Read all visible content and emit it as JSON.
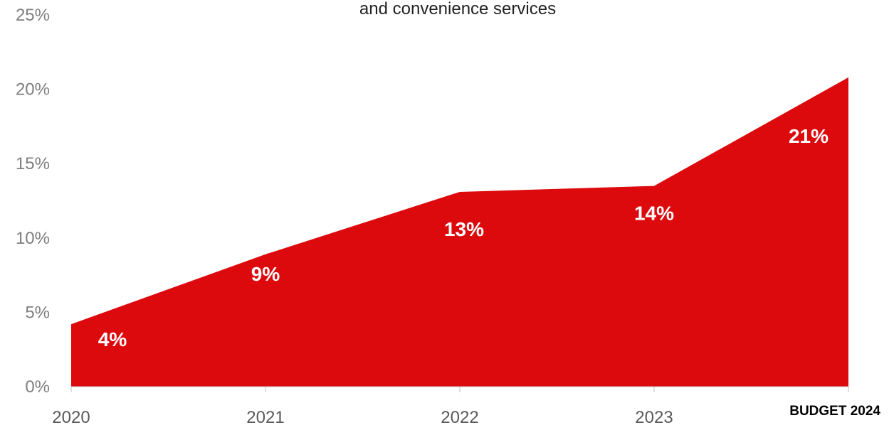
{
  "chart_data": {
    "type": "area",
    "title": "and convenience services",
    "categories": [
      "2020",
      "2021",
      "2022",
      "2023",
      "BUDGET 2024"
    ],
    "values": [
      4.2,
      8.9,
      13.1,
      13.5,
      20.8
    ],
    "data_labels": [
      "4%",
      "9%",
      "13%",
      "14%",
      "21%"
    ],
    "y_ticks": [
      "0%",
      "5%",
      "10%",
      "15%",
      "20%",
      "25%"
    ],
    "ylim": [
      0,
      25
    ],
    "xlabel": "",
    "ylabel": "",
    "grid": false,
    "colors": {
      "area": "#dd0a0d"
    }
  }
}
